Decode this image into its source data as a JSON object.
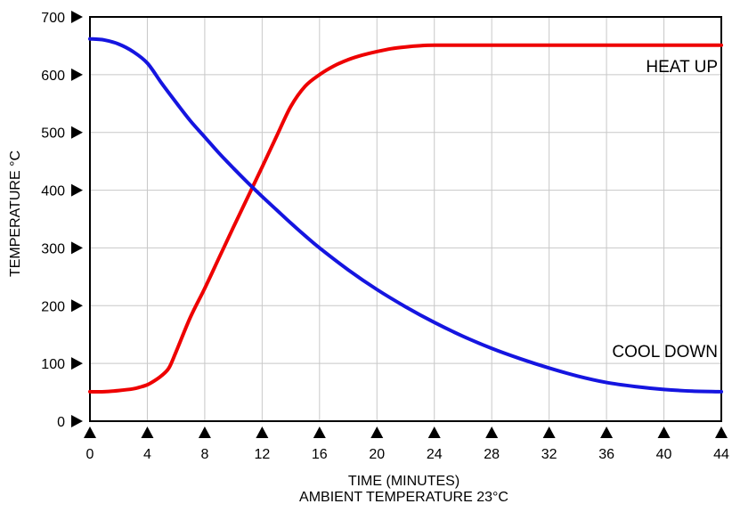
{
  "chart_data": {
    "type": "line",
    "title": "",
    "xlabel": "TIME (MINUTES)",
    "xlabel2": "AMBIENT TEMPERATURE 23°C",
    "ylabel": "TEMPERATURE °C",
    "xlim": [
      0,
      44
    ],
    "ylim": [
      0,
      700
    ],
    "x_ticks": [
      0,
      4,
      8,
      12,
      16,
      20,
      24,
      28,
      32,
      36,
      40,
      44
    ],
    "y_ticks": [
      0,
      100,
      200,
      300,
      400,
      500,
      600,
      700
    ],
    "x_tick_labels": [
      "0",
      "4",
      "8",
      "12",
      "16",
      "20",
      "24",
      "28",
      "32",
      "36",
      "40",
      "44"
    ],
    "y_tick_labels": [
      "0",
      "100",
      "200",
      "300",
      "400",
      "500",
      "600",
      "700"
    ],
    "grid": true,
    "series": [
      {
        "name": "HEAT UP",
        "color": "#ee0000",
        "x": [
          0,
          1,
          2,
          3,
          3.5,
          4,
          4.5,
          5,
          5.5,
          6,
          7,
          8,
          9,
          10,
          11,
          12,
          13,
          14,
          15,
          16,
          17,
          18,
          19,
          20,
          21,
          22,
          23,
          24,
          28,
          32,
          36,
          40,
          44
        ],
        "y": [
          51,
          51,
          53,
          56,
          59,
          63,
          70,
          79,
          92,
          120,
          180,
          230,
          283,
          336,
          388,
          440,
          493,
          545,
          580,
          600,
          615,
          626,
          634,
          640,
          645,
          648,
          650,
          651,
          651,
          651,
          651,
          651,
          651
        ]
      },
      {
        "name": "COOL DOWN",
        "color": "#1515e0",
        "x": [
          0,
          1,
          2,
          3,
          4,
          5,
          6,
          7,
          8,
          9,
          10,
          11,
          12,
          13,
          14,
          15,
          16,
          18,
          20,
          22,
          24,
          26,
          28,
          30,
          32,
          34,
          36,
          38,
          40,
          42,
          44
        ],
        "y": [
          662,
          660,
          653,
          640,
          620,
          585,
          552,
          520,
          492,
          464,
          438,
          413,
          389,
          366,
          343,
          321,
          300,
          262,
          228,
          198,
          171,
          147,
          126,
          108,
          92,
          78,
          67,
          60,
          55,
          52,
          51
        ]
      }
    ],
    "annotations": [
      {
        "text": "HEAT UP",
        "series": "HEAT UP"
      },
      {
        "text": "COOL DOWN",
        "series": "COOL DOWN"
      }
    ]
  }
}
